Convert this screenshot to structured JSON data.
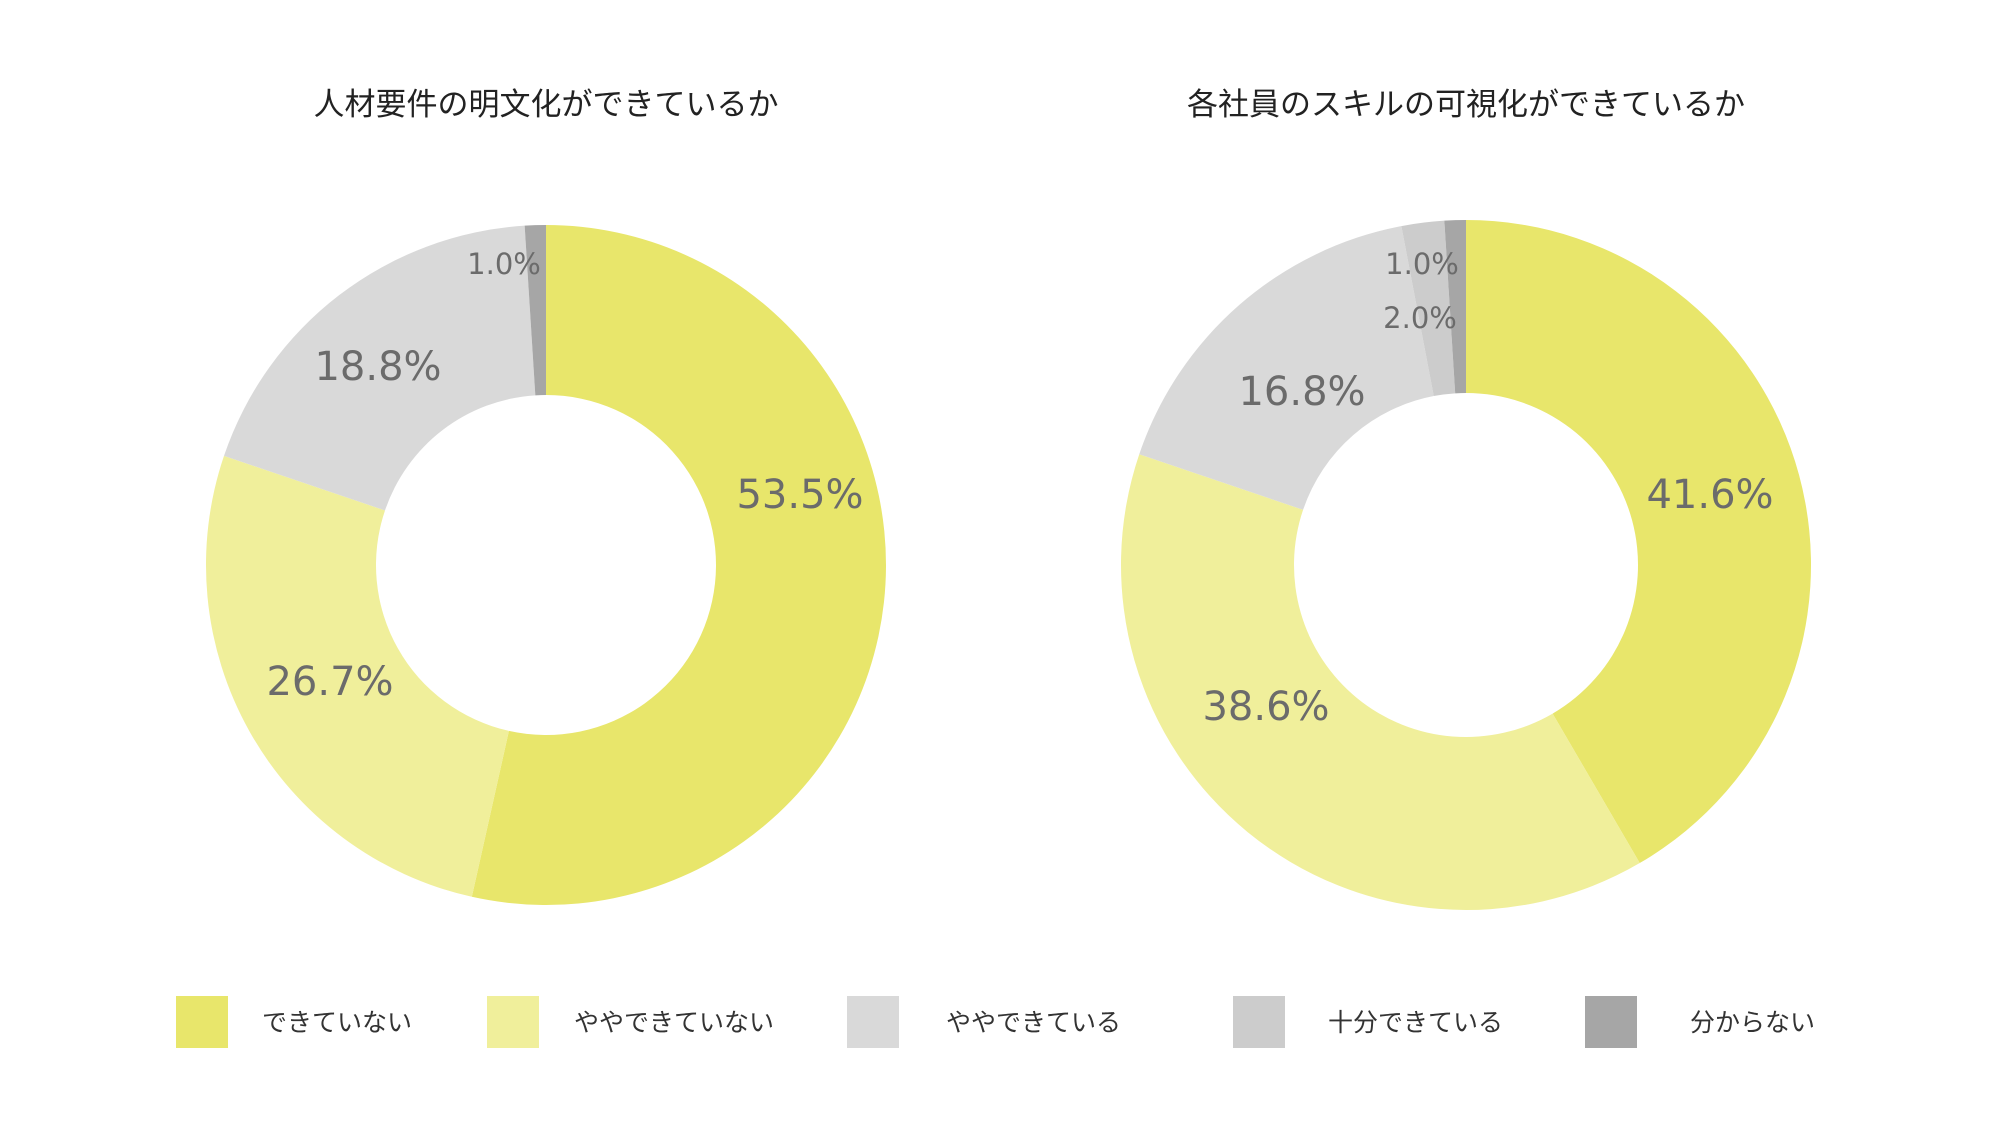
{
  "legend": [
    {
      "label": "できていない",
      "color": "#e8e66b"
    },
    {
      "label": "ややできていない",
      "color": "#f0ef9b"
    },
    {
      "label": "ややできている",
      "color": "#d9d9d9"
    },
    {
      "label": "十分できている",
      "color": "#cccccc"
    },
    {
      "label": "分からない",
      "color": "#a6a6a6"
    }
  ],
  "chart_data": [
    {
      "type": "pie",
      "title": "人材要件の明文化ができているか",
      "categories": [
        "できていない",
        "ややできていない",
        "ややできている",
        "十分できている",
        "分からない"
      ],
      "values": [
        53.5,
        26.7,
        18.8,
        0,
        1.0
      ],
      "labels": [
        "53.5%",
        "26.7%",
        "18.8%",
        "",
        "1.0%"
      ],
      "colors": [
        "#e8e66b",
        "#f0ef9b",
        "#d9d9d9",
        "#cccccc",
        "#a6a6a6"
      ]
    },
    {
      "type": "pie",
      "title": "各社員のスキルの可視化ができているか",
      "categories": [
        "できていない",
        "ややできていない",
        "ややできている",
        "十分できている",
        "分からない"
      ],
      "values": [
        41.6,
        38.6,
        16.8,
        2.0,
        1.0
      ],
      "labels": [
        "41.6%",
        "38.6%",
        "16.8%",
        "2.0%",
        "1.0%"
      ],
      "colors": [
        "#e8e66b",
        "#f0ef9b",
        "#d9d9d9",
        "#cccccc",
        "#a6a6a6"
      ]
    }
  ]
}
